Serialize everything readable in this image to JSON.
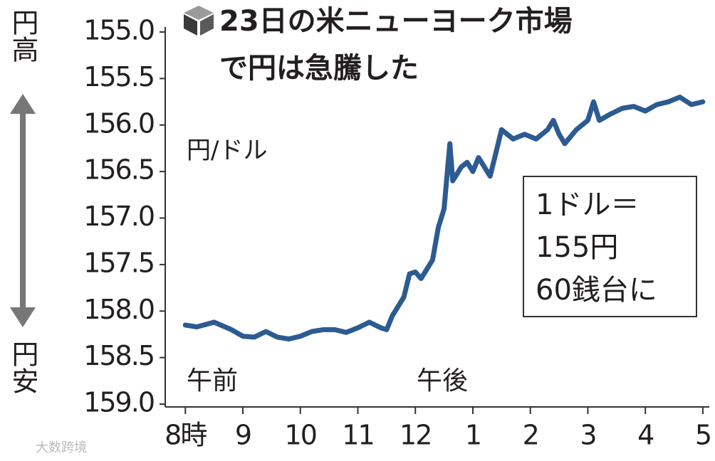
{
  "chart_data": {
    "type": "line",
    "title": [
      "23日の米ニューヨーク市場",
      "で円は急騰した"
    ],
    "y_label": "円/ドル",
    "y_top_label": "円高",
    "y_bottom_label": "円安",
    "annotations": [
      "午前",
      "午後"
    ],
    "callout": [
      "1ドル＝",
      "155円",
      "60銭台に"
    ],
    "watermark": "大数跨境",
    "x": [
      8.0,
      8.2,
      8.5,
      8.8,
      9.0,
      9.2,
      9.4,
      9.6,
      9.8,
      10.0,
      10.2,
      10.4,
      10.6,
      10.8,
      11.0,
      11.2,
      11.4,
      11.5,
      11.6,
      11.8,
      11.9,
      12.0,
      12.1,
      12.2,
      12.3,
      12.4,
      12.5,
      12.55,
      12.6,
      12.65,
      12.8,
      12.9,
      13.0,
      13.1,
      13.3,
      13.4,
      13.5,
      13.7,
      13.9,
      14.1,
      14.3,
      14.4,
      14.5,
      14.6,
      14.8,
      15.0,
      15.1,
      15.2,
      15.4,
      15.6,
      15.8,
      16.0,
      16.2,
      16.4,
      16.6,
      16.8,
      17.0
    ],
    "series": [
      {
        "color": "#2c5b91",
        "values": [
          158.15,
          158.17,
          158.12,
          158.2,
          158.27,
          158.28,
          158.22,
          158.28,
          158.3,
          158.27,
          158.22,
          158.2,
          158.2,
          158.23,
          158.18,
          158.12,
          158.18,
          158.2,
          158.05,
          157.85,
          157.6,
          157.58,
          157.65,
          157.55,
          157.45,
          157.1,
          156.9,
          156.55,
          156.2,
          156.6,
          156.45,
          156.4,
          156.5,
          156.35,
          156.55,
          156.3,
          156.05,
          156.15,
          156.1,
          156.15,
          156.05,
          155.95,
          156.1,
          156.2,
          156.05,
          155.95,
          155.75,
          155.95,
          155.88,
          155.82,
          155.8,
          155.85,
          155.78,
          155.75,
          155.7,
          155.78,
          155.75
        ]
      }
    ],
    "xlim": [
      7.65,
      17.1
    ],
    "xticks": [
      {
        "value": 8,
        "label": "8時"
      },
      9,
      10,
      11,
      12,
      {
        "value": 13,
        "label": "1"
      },
      {
        "value": 14,
        "label": "2"
      },
      {
        "value": 15,
        "label": "3"
      },
      {
        "value": 16,
        "label": "4"
      },
      {
        "value": 17,
        "label": "5"
      }
    ],
    "ylim": [
      155,
      159
    ],
    "y_inverted": true,
    "yticks": [
      {
        "value": 155,
        "label": "155.0"
      },
      155.5,
      {
        "value": 156,
        "label": "156.0"
      },
      156.5,
      {
        "value": 157,
        "label": "157.0"
      },
      157.5,
      {
        "value": 158,
        "label": "158.0"
      },
      158.5,
      {
        "value": 159,
        "label": "159.0"
      }
    ],
    "grid": false
  }
}
